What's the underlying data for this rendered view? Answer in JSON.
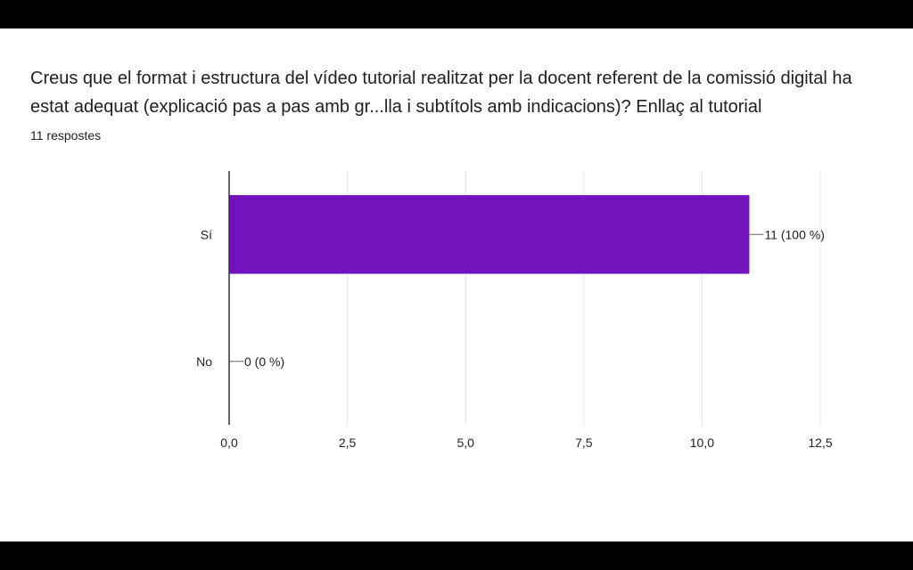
{
  "question": "Creus que el format i estructura del vídeo tutorial realitzat per la docent referent de la comissió digital ha estat adequat (explicació pas a pas amb gr...lla i subtítols amb indicacions)? Enllaç al tutorial",
  "response_count": "11 respostes",
  "colors": {
    "bar": "#7213be",
    "grid": "#e6e6e6",
    "axis": "#333333"
  },
  "chart_data": {
    "type": "bar",
    "orientation": "horizontal",
    "categories": [
      "Sí",
      "No"
    ],
    "values": [
      11,
      0
    ],
    "data_labels": [
      "11 (100 %)",
      "0 (0 %)"
    ],
    "xlim": [
      0,
      12.5
    ],
    "xticks": [
      0,
      2.5,
      5,
      7.5,
      10,
      12.5
    ],
    "xtick_labels": [
      "0,0",
      "2,5",
      "5,0",
      "7,5",
      "10,0",
      "12,5"
    ],
    "grid": true,
    "legend": "none"
  }
}
